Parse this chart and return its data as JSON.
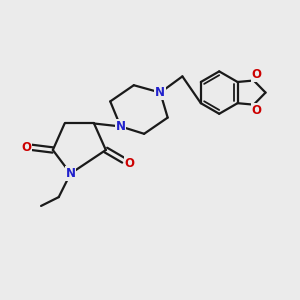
{
  "bg_color": "#ebebeb",
  "bond_color": "#1a1a1a",
  "N_color": "#2020cc",
  "O_color": "#cc0000",
  "line_width": 1.6,
  "fig_size": [
    3.0,
    3.0
  ],
  "dpi": 100,
  "xlim": [
    0,
    10
  ],
  "ylim": [
    0,
    10
  ]
}
